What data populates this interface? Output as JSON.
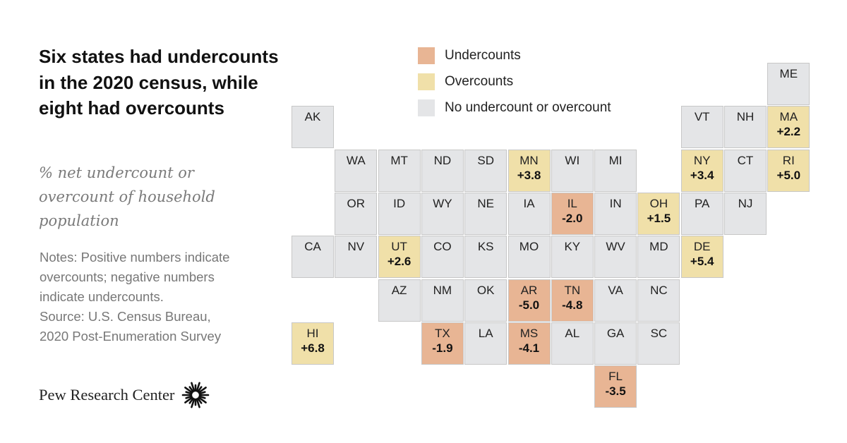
{
  "title": "Six states had undercounts in the 2020 census, while eight had overcounts",
  "subtitle": "% net undercount or overcount of household population",
  "notes": [
    "Notes: Positive numbers indicate",
    "overcounts; negative numbers",
    "indicate undercounts.",
    "Source: U.S. Census Bureau,",
    "2020 Post-Enumeration Survey"
  ],
  "brand": "Pew Research Center",
  "icons": {
    "logo": "pew-sunburst-icon"
  },
  "colors": {
    "under": "#e8b594",
    "over": "#f0e0a9",
    "none": "#e4e5e7"
  },
  "legend": [
    {
      "key": "under",
      "label": "Undercounts"
    },
    {
      "key": "over",
      "label": "Overcounts"
    },
    {
      "key": "none",
      "label": "No undercount or overcount"
    }
  ],
  "chart_data": {
    "type": "tile-map",
    "states": [
      {
        "id": "ME",
        "value": null,
        "status": "none",
        "col": 11,
        "row": 0
      },
      {
        "id": "AK",
        "value": null,
        "status": "none",
        "col": 0,
        "row": 1
      },
      {
        "id": "VT",
        "value": null,
        "status": "none",
        "col": 9,
        "row": 1
      },
      {
        "id": "NH",
        "value": null,
        "status": "none",
        "col": 10,
        "row": 1
      },
      {
        "id": "MA",
        "value": "+2.2",
        "status": "over",
        "col": 11,
        "row": 1
      },
      {
        "id": "WA",
        "value": null,
        "status": "none",
        "col": 1,
        "row": 2
      },
      {
        "id": "MT",
        "value": null,
        "status": "none",
        "col": 2,
        "row": 2
      },
      {
        "id": "ND",
        "value": null,
        "status": "none",
        "col": 3,
        "row": 2
      },
      {
        "id": "SD",
        "value": null,
        "status": "none",
        "col": 4,
        "row": 2
      },
      {
        "id": "MN",
        "value": "+3.8",
        "status": "over",
        "col": 5,
        "row": 2
      },
      {
        "id": "WI",
        "value": null,
        "status": "none",
        "col": 6,
        "row": 2
      },
      {
        "id": "MI",
        "value": null,
        "status": "none",
        "col": 7,
        "row": 2
      },
      {
        "id": "NY",
        "value": "+3.4",
        "status": "over",
        "col": 9,
        "row": 2
      },
      {
        "id": "CT",
        "value": null,
        "status": "none",
        "col": 10,
        "row": 2
      },
      {
        "id": "RI",
        "value": "+5.0",
        "status": "over",
        "col": 11,
        "row": 2
      },
      {
        "id": "OR",
        "value": null,
        "status": "none",
        "col": 1,
        "row": 3
      },
      {
        "id": "ID",
        "value": null,
        "status": "none",
        "col": 2,
        "row": 3
      },
      {
        "id": "WY",
        "value": null,
        "status": "none",
        "col": 3,
        "row": 3
      },
      {
        "id": "NE",
        "value": null,
        "status": "none",
        "col": 4,
        "row": 3
      },
      {
        "id": "IA",
        "value": null,
        "status": "none",
        "col": 5,
        "row": 3
      },
      {
        "id": "IL",
        "value": "-2.0",
        "status": "under",
        "col": 6,
        "row": 3
      },
      {
        "id": "IN",
        "value": null,
        "status": "none",
        "col": 7,
        "row": 3
      },
      {
        "id": "OH",
        "value": "+1.5",
        "status": "over",
        "col": 8,
        "row": 3
      },
      {
        "id": "PA",
        "value": null,
        "status": "none",
        "col": 9,
        "row": 3
      },
      {
        "id": "NJ",
        "value": null,
        "status": "none",
        "col": 10,
        "row": 3
      },
      {
        "id": "CA",
        "value": null,
        "status": "none",
        "col": 0,
        "row": 4
      },
      {
        "id": "NV",
        "value": null,
        "status": "none",
        "col": 1,
        "row": 4
      },
      {
        "id": "UT",
        "value": "+2.6",
        "status": "over",
        "col": 2,
        "row": 4
      },
      {
        "id": "CO",
        "value": null,
        "status": "none",
        "col": 3,
        "row": 4
      },
      {
        "id": "KS",
        "value": null,
        "status": "none",
        "col": 4,
        "row": 4
      },
      {
        "id": "MO",
        "value": null,
        "status": "none",
        "col": 5,
        "row": 4
      },
      {
        "id": "KY",
        "value": null,
        "status": "none",
        "col": 6,
        "row": 4
      },
      {
        "id": "WV",
        "value": null,
        "status": "none",
        "col": 7,
        "row": 4
      },
      {
        "id": "MD",
        "value": null,
        "status": "none",
        "col": 8,
        "row": 4
      },
      {
        "id": "DE",
        "value": "+5.4",
        "status": "over",
        "col": 9,
        "row": 4
      },
      {
        "id": "AZ",
        "value": null,
        "status": "none",
        "col": 2,
        "row": 5
      },
      {
        "id": "NM",
        "value": null,
        "status": "none",
        "col": 3,
        "row": 5
      },
      {
        "id": "OK",
        "value": null,
        "status": "none",
        "col": 4,
        "row": 5
      },
      {
        "id": "AR",
        "value": "-5.0",
        "status": "under",
        "col": 5,
        "row": 5
      },
      {
        "id": "TN",
        "value": "-4.8",
        "status": "under",
        "col": 6,
        "row": 5
      },
      {
        "id": "VA",
        "value": null,
        "status": "none",
        "col": 7,
        "row": 5
      },
      {
        "id": "NC",
        "value": null,
        "status": "none",
        "col": 8,
        "row": 5
      },
      {
        "id": "HI",
        "value": "+6.8",
        "status": "over",
        "col": 0,
        "row": 6
      },
      {
        "id": "TX",
        "value": "-1.9",
        "status": "under",
        "col": 3,
        "row": 6
      },
      {
        "id": "LA",
        "value": null,
        "status": "none",
        "col": 4,
        "row": 6
      },
      {
        "id": "MS",
        "value": "-4.1",
        "status": "under",
        "col": 5,
        "row": 6
      },
      {
        "id": "AL",
        "value": null,
        "status": "none",
        "col": 6,
        "row": 6
      },
      {
        "id": "GA",
        "value": null,
        "status": "none",
        "col": 7,
        "row": 6
      },
      {
        "id": "SC",
        "value": null,
        "status": "none",
        "col": 8,
        "row": 6
      },
      {
        "id": "FL",
        "value": "-3.5",
        "status": "under",
        "col": 7,
        "row": 7
      }
    ]
  }
}
